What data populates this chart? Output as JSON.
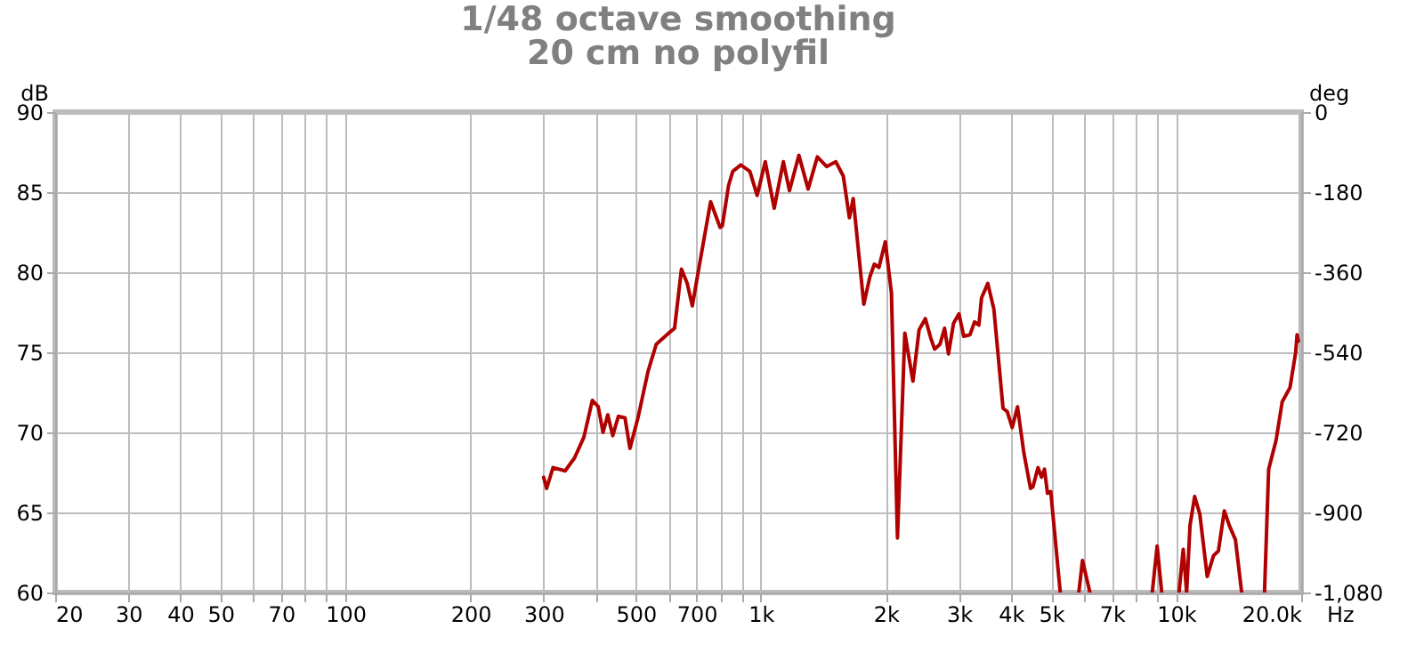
{
  "chart_data": {
    "type": "line",
    "title": "1/48 octave smoothing",
    "subtitle": "20 cm no polyfil",
    "ylabel": "dB",
    "y2label": "deg",
    "x": [
      300,
      305,
      316,
      338,
      356,
      375,
      393,
      406,
      417,
      428,
      440,
      454,
      471,
      484,
      506,
      535,
      560,
      600,
      620,
      644,
      665,
      684,
      712,
      757,
      798,
      808,
      836,
      856,
      895,
      941,
      980,
      1025,
      1077,
      1133,
      1172,
      1235,
      1300,
      1368,
      1440,
      1516,
      1580,
      1634,
      1669,
      1770,
      1830,
      1876,
      1925,
      1994,
      2063,
      2133,
      2222,
      2324,
      2405,
      2490,
      2565,
      2620,
      2700,
      2770,
      2830,
      2910,
      3000,
      3080,
      3190,
      3270,
      3350,
      3400,
      3520,
      3640,
      3830,
      3920,
      4030,
      4150,
      4300,
      4460,
      4520,
      4650,
      4740,
      4820,
      4900,
      4990,
      5260,
      5500,
      5830,
      5950,
      6200,
      7500,
      8760,
      9000,
      9230,
      9700,
      10160,
      10400,
      10600,
      10800,
      11080,
      11400,
      11880,
      12300,
      12640,
      13060,
      13420,
      13890,
      14380,
      15300,
      16320,
      16700,
      17400,
      18000,
      18800,
      19400,
      19550,
      19700
    ],
    "series": [
      {
        "color": "#b00000",
        "values": [
          67.2,
          66.5,
          67.8,
          67.6,
          68.4,
          69.7,
          72.0,
          71.6,
          70.0,
          71.1,
          69.8,
          71.0,
          70.9,
          69.0,
          70.9,
          73.8,
          75.5,
          76.2,
          76.5,
          80.2,
          79.3,
          77.9,
          80.5,
          84.4,
          82.8,
          82.9,
          85.4,
          86.3,
          86.7,
          86.3,
          84.8,
          86.9,
          84.0,
          86.9,
          85.1,
          87.3,
          85.2,
          87.2,
          86.6,
          86.9,
          86.0,
          83.4,
          84.6,
          78.0,
          79.7,
          80.5,
          80.3,
          81.9,
          78.7,
          63.4,
          76.2,
          73.2,
          76.4,
          77.1,
          75.9,
          75.2,
          75.5,
          76.5,
          74.9,
          76.8,
          77.4,
          76.0,
          76.1,
          76.9,
          76.7,
          78.4,
          79.3,
          77.7,
          71.5,
          71.3,
          70.3,
          71.6,
          68.7,
          66.5,
          66.6,
          67.8,
          67.2,
          67.7,
          66.2,
          66.3,
          60,
          null,
          60,
          62.0,
          60,
          null,
          60,
          62.9,
          60,
          null,
          60,
          62.7,
          60,
          64.2,
          66.0,
          64.9,
          61.0,
          62.3,
          62.6,
          65.1,
          64.2,
          63.3,
          60,
          null,
          60,
          67.7,
          69.5,
          71.9,
          72.8,
          75.0,
          76.1,
          75.7
        ]
      }
    ],
    "xlim": [
      20,
      20000
    ],
    "log": "x",
    "xticks": [
      20,
      30,
      40,
      50,
      {
        "value": 60,
        "label": null
      },
      70,
      {
        "value": 80,
        "label": null
      },
      {
        "value": 90,
        "label": null
      },
      100,
      200,
      300,
      {
        "value": 400,
        "label": null
      },
      500,
      {
        "value": 600,
        "label": null
      },
      700,
      {
        "value": 800,
        "label": null
      },
      {
        "value": 900,
        "label": null
      },
      {
        "value": 1000,
        "label": "1k"
      },
      {
        "value": 2000,
        "label": "2k"
      },
      {
        "value": 3000,
        "label": "3k"
      },
      {
        "value": 4000,
        "label": "4k"
      },
      {
        "value": 5000,
        "label": "5k"
      },
      {
        "value": 6000,
        "label": null
      },
      {
        "value": 7000,
        "label": "7k"
      },
      {
        "value": 8000,
        "label": null
      },
      {
        "value": 9000,
        "label": null
      },
      {
        "value": 10000,
        "label": "10k"
      },
      {
        "value": 20000,
        "label": "20.0k"
      }
    ],
    "xlabel": "Hz",
    "ylim": [
      60,
      90
    ],
    "yticks": [
      60,
      65,
      70,
      75,
      80,
      85,
      90
    ],
    "y2lim": [
      -1080,
      0
    ],
    "y2ticks": [
      {
        "value": -1080,
        "label": "-1,080"
      },
      -900,
      -720,
      -540,
      -360,
      -180,
      0
    ],
    "grid": true
  }
}
